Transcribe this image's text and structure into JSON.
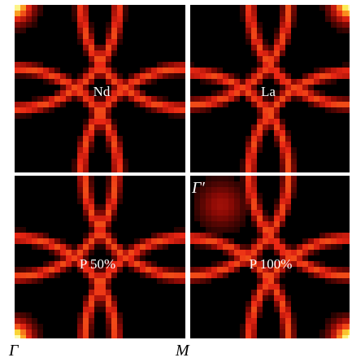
{
  "panels": [
    {
      "label": "Nd"
    },
    {
      "label": "La"
    },
    {
      "label": "P 50%"
    },
    {
      "label": "P 100%"
    }
  ],
  "axis": {
    "gamma": "Γ",
    "m": "M"
  },
  "inset": {
    "gamma_prime": "Γ′"
  },
  "colors": {
    "background": "#000000",
    "grid": "#ffffff",
    "map_low": "#000000",
    "map_high": "#ffffcc"
  }
}
